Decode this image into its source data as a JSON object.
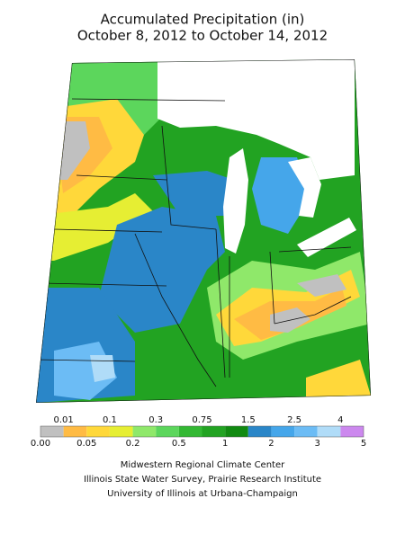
{
  "title": {
    "line1": "Accumulated Precipitation (in)",
    "line2": "October 8, 2012 to October 14, 2012"
  },
  "legend": {
    "labels": [
      "0.00",
      "0.01",
      "0.05",
      "0.1",
      "0.2",
      "0.3",
      "0.5",
      "0.75",
      "1",
      "1.5",
      "2",
      "2.5",
      "3",
      "4",
      "5"
    ],
    "colors": [
      "#c0c0c0",
      "#ffbb44",
      "#ffd83a",
      "#e6ee33",
      "#8fe86a",
      "#5cd65c",
      "#33b833",
      "#22a322",
      "#118a11",
      "#2a86c8",
      "#45a6ea",
      "#6cbcf5",
      "#b0dcf8",
      "#cc88ee"
    ]
  },
  "credits": [
    "Midwestern Regional Climate Center",
    "Illinois State Water Survey, Prairie Research Institute",
    "University of Illinois at Urbana-Champaign"
  ]
}
